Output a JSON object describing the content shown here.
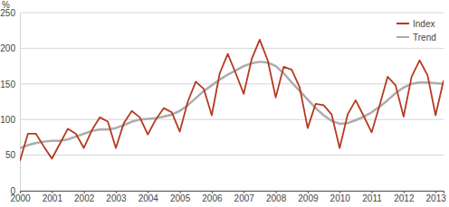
{
  "chart_data": {
    "type": "line",
    "ylabel": "%",
    "categories": [
      "2000",
      null,
      null,
      null,
      "2001",
      null,
      null,
      null,
      "2002",
      null,
      null,
      null,
      "2003",
      null,
      null,
      null,
      "2004",
      null,
      null,
      null,
      "2005",
      null,
      null,
      null,
      "2006",
      null,
      null,
      null,
      "2007",
      null,
      null,
      null,
      "2008",
      null,
      null,
      null,
      "2009",
      null,
      null,
      null,
      "2010",
      null,
      null,
      null,
      "2011",
      null,
      null,
      null,
      "2012",
      null,
      null,
      null,
      "2013",
      null
    ],
    "series": [
      {
        "name": "Index",
        "color": "#b53a22",
        "values": [
          42,
          80,
          80,
          62,
          45,
          66,
          87,
          80,
          60,
          85,
          103,
          97,
          60,
          95,
          112,
          103,
          79,
          100,
          116,
          110,
          83,
          125,
          153,
          143,
          106,
          165,
          192,
          165,
          136,
          185,
          212,
          183,
          131,
          174,
          170,
          145,
          88,
          122,
          120,
          107,
          60,
          107,
          127,
          105,
          82,
          120,
          160,
          148,
          104,
          160,
          183,
          162,
          106,
          155
        ]
      },
      {
        "name": "Trend",
        "color": "#acacac",
        "values": [
          60,
          64,
          67,
          69,
          70,
          70,
          72,
          76,
          80,
          84,
          86,
          86,
          88,
          92,
          97,
          100,
          101,
          102,
          104,
          107,
          112,
          120,
          130,
          140,
          148,
          156,
          163,
          169,
          175,
          179,
          181,
          180,
          175,
          165,
          152,
          140,
          128,
          116,
          106,
          98,
          94,
          95,
          99,
          104,
          110,
          118,
          127,
          137,
          145,
          150,
          152,
          152,
          151,
          150
        ]
      }
    ],
    "ylim": [
      0,
      250
    ],
    "yticks": [
      0,
      50,
      100,
      150,
      200,
      250
    ],
    "grid": true,
    "legend": "upper right"
  }
}
